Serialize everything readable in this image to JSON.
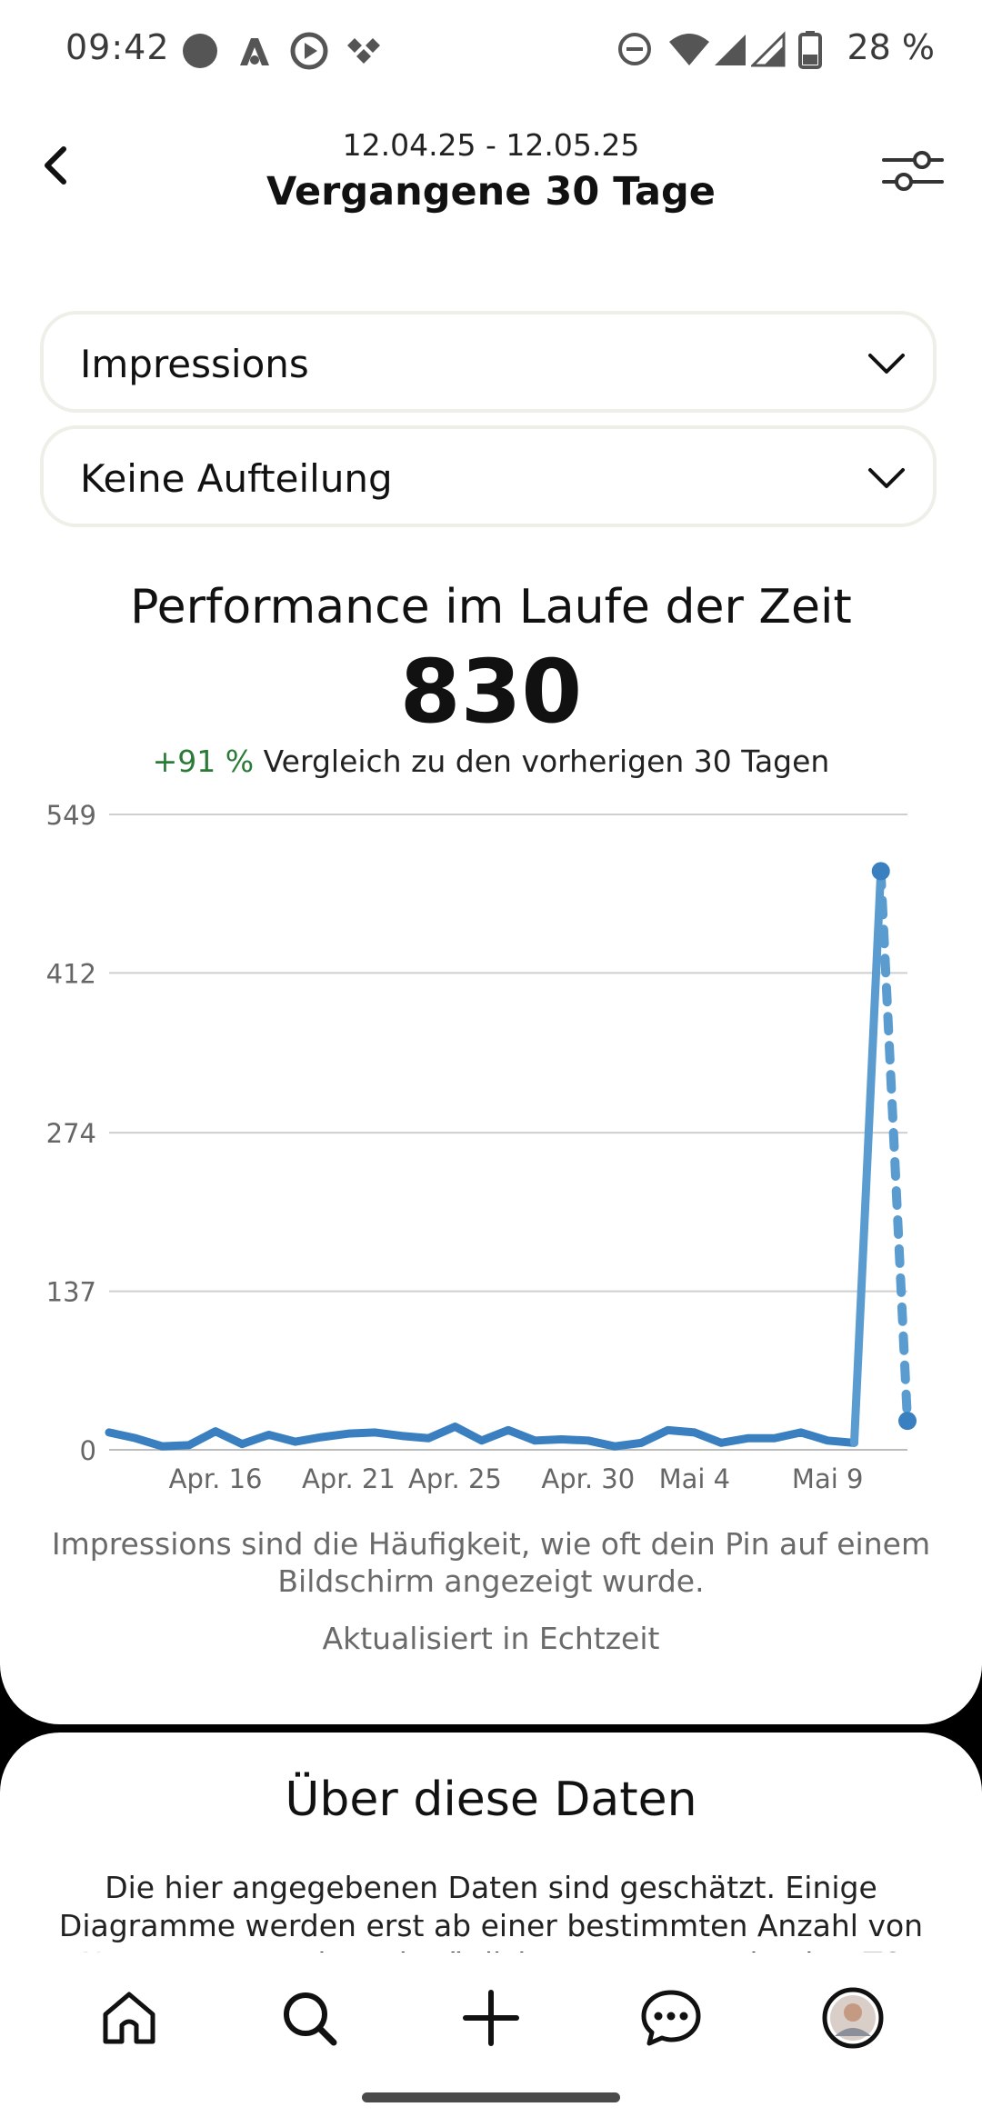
{
  "status_bar": {
    "time": "09:42",
    "battery": "28 %",
    "icons": [
      "circle-notification-icon",
      "app-a-icon",
      "media-icon",
      "app-diamond-icon",
      "dnd-icon",
      "wifi-icon",
      "signal-icon",
      "signal-icon",
      "battery-icon"
    ]
  },
  "header": {
    "date_range": "12.04.25 - 12.05.25",
    "title": "Vergangene 30 Tage",
    "back_icon": "chevron-left-icon",
    "filter_icon": "sliders-icon"
  },
  "metric_dropdown": {
    "selected": "Impressions"
  },
  "breakdown_dropdown": {
    "selected": "Keine Aufteilung"
  },
  "performance": {
    "title": "Performance im Laufe der Zeit",
    "total": "830",
    "change_pct": "+91 %",
    "change_text": " Vergleich zu den vorherigen 30 Tagen"
  },
  "chart_data": {
    "type": "line",
    "title": "",
    "xlabel": "",
    "ylabel": "",
    "ylim": [
      0,
      549
    ],
    "yticks": [
      "549",
      "412",
      "274",
      "137",
      "0"
    ],
    "xtick_labels": [
      {
        "label": "Apr. 16",
        "x": 4
      },
      {
        "label": "Apr. 21",
        "x": 9
      },
      {
        "label": "Apr. 25",
        "x": 13
      },
      {
        "label": "Apr. 30",
        "x": 18
      },
      {
        "label": "Mai 4",
        "x": 22
      },
      {
        "label": "Mai 9",
        "x": 27
      }
    ],
    "grid": true,
    "color": "#3a7fbf",
    "series": [
      {
        "style": "solid",
        "x": [
          0,
          1,
          2,
          3,
          4,
          5,
          6,
          7,
          8,
          9,
          10,
          11,
          12,
          13,
          14,
          15,
          16,
          17,
          18,
          19,
          20,
          21,
          22,
          23,
          24,
          25,
          26,
          27,
          28,
          29
        ],
        "values": [
          15,
          10,
          3,
          4,
          16,
          5,
          13,
          7,
          11,
          14,
          15,
          12,
          10,
          20,
          8,
          17,
          8,
          9,
          8,
          3,
          6,
          17,
          15,
          6,
          10,
          10,
          15,
          8,
          6,
          500
        ]
      },
      {
        "style": "dashed",
        "x": [
          29,
          30
        ],
        "values": [
          500,
          25
        ]
      }
    ]
  },
  "chart_notes": {
    "description": "Impressions sind die Häufigkeit, wie oft dein Pin auf einem Bildschirm angezeigt wurde.",
    "updated": "Aktualisiert in Echtzeit"
  },
  "about": {
    "title": "Über diese Daten",
    "body": "Die hier angegebenen Daten sind geschätzt. Einige Diagramme werden erst ab einer bestimmten Anzahl von Nutzern angezeigt. Die täglichen Daten werden in UTC"
  },
  "bottom_nav": [
    {
      "name": "nav-home",
      "icon": "home-icon"
    },
    {
      "name": "nav-search",
      "icon": "search-icon"
    },
    {
      "name": "nav-create",
      "icon": "plus-icon"
    },
    {
      "name": "nav-messages",
      "icon": "chat-icon"
    },
    {
      "name": "nav-profile",
      "icon": "avatar"
    }
  ]
}
